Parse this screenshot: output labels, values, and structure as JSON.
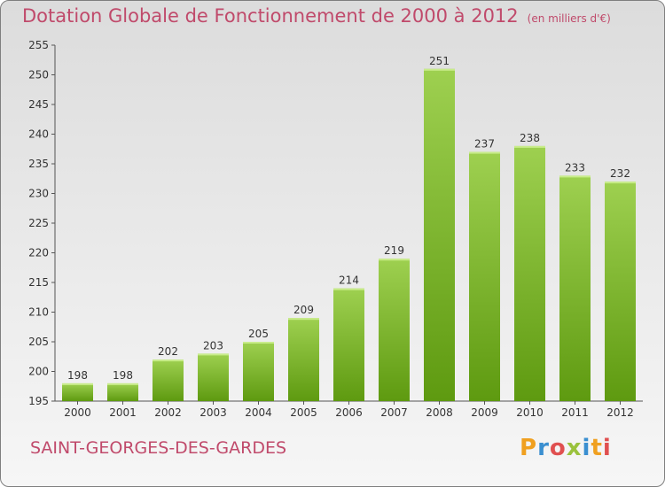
{
  "header": {
    "title": "Dotation Globale de Fonctionnement de 2000 à 2012",
    "subtitle": "(en milliers d'€)"
  },
  "footer": {
    "commune": "SAINT-GEORGES-DES-GARDES",
    "brand_letters": [
      "P",
      "r",
      "o",
      "x",
      "i",
      "t",
      "i"
    ]
  },
  "chart_data": {
    "type": "bar",
    "title": "Dotation Globale de Fonctionnement de 2000 à 2012",
    "unit_label": "(en milliers d'€)",
    "categories": [
      "2000",
      "2001",
      "2002",
      "2003",
      "2004",
      "2005",
      "2006",
      "2007",
      "2008",
      "2009",
      "2010",
      "2011",
      "2012"
    ],
    "values": [
      198,
      198,
      202,
      203,
      205,
      209,
      214,
      219,
      251,
      237,
      238,
      233,
      232
    ],
    "ylim": [
      195,
      255
    ],
    "yticks": [
      195,
      200,
      205,
      210,
      215,
      220,
      225,
      230,
      235,
      240,
      245,
      250,
      255
    ],
    "grid": false,
    "xlabel": "",
    "ylabel": "",
    "colors": {
      "bar_light": "#9ed050",
      "bar_dark": "#5e9a10",
      "axis": "#555555",
      "text": "#333333"
    }
  }
}
